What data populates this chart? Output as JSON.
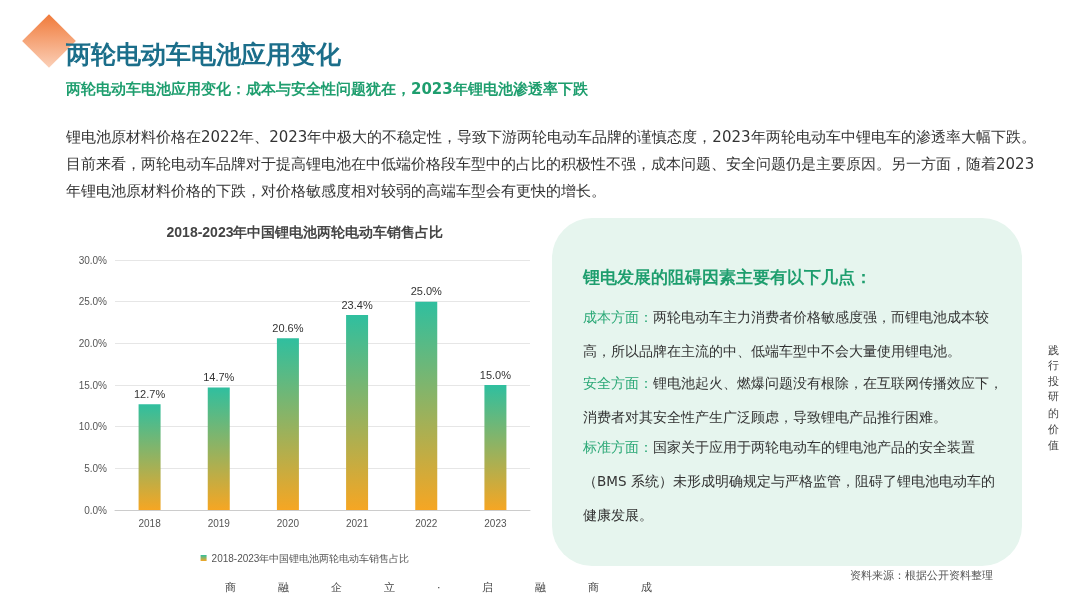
{
  "chart_data": {
    "type": "bar",
    "title": "2018-2023年中国锂电池两轮电动车销售占比",
    "subtitle": "两轮电动车电池应用变化：成本与安全性问题犹在，2023年锂电池渗透率下跌",
    "categories": [
      "2018",
      "2019",
      "2020",
      "2021",
      "2022",
      "2023"
    ],
    "series": [
      {
        "name": "2018-2023年中国锂电池两轮电动车销售占比",
        "color": "#2fbf9f",
        "values": [
          12.7,
          14.7,
          20.6,
          23.4,
          25.0,
          15.0
        ],
        "value_labels": [
          "12.7%",
          "14.7%",
          "20.6%",
          "23.4%",
          "25.0%",
          "15.0%"
        ]
      }
    ],
    "ylim": [
      0,
      30
    ],
    "yticks": [
      {
        "value": 0,
        "label": "0.0%"
      },
      {
        "value": 5,
        "label": "5.0%"
      },
      {
        "value": 10,
        "label": "10.0%"
      },
      {
        "value": 15,
        "label": "15.0%"
      },
      {
        "value": 20,
        "label": "20.0%"
      },
      {
        "value": 25,
        "label": "25.0%"
      },
      {
        "value": 30,
        "label": "30.0%"
      }
    ],
    "grid": "y",
    "legend": "bottom",
    "annotations": [
      "两轮电动车电池应用变化",
      "锂电池原材料价格在2022年、2023年中极大的不稳定性，导致下游两轮电动车品牌的谨慎态度，2023年两轮电动车中锂电车的渗透率大幅下跌。目前来看，两轮电动车品牌对于提高锂电池在中低端价格段车型中的占比的积极性不强，成本问题、安全问题仍是主要原因。另一方面，随着2023年锂电池原材料价格的下跌，对价格敏感度相对较弱的高端车型会有更快的增长。",
      "锂电发展的阻碍因素主要有以下几点：",
      "成本方面：两轮电动车主力消费者价格敏感度强，而锂电池成本较高，所以品牌在主流的中、低端车型中不会大量使用锂电池。",
      "安全方面：锂电池起火、燃爆问题没有根除，在互联网传播效应下，消费者对其安全性产生广泛顾虑，导致锂电产品推行困难。",
      "标准方面：国家关于应用于两轮电动车的锂电池产品的安全装置（BMS 系统）未形成明确规定与严格监管，阻碍了锂电池电动车的健康发展。",
      "资料来源：根据公开资料整理",
      "商融企立·启融商成",
      "践行投研的价值"
    ]
  }
}
